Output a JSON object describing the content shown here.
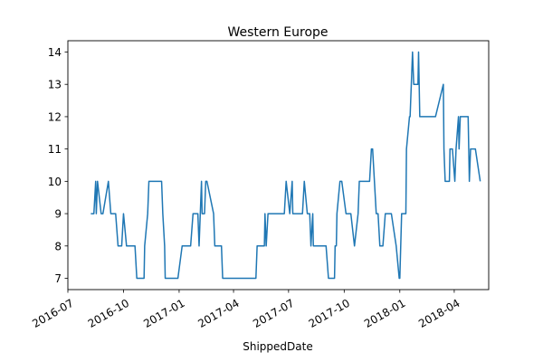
{
  "chart_data": {
    "type": "line",
    "title": "Western Europe",
    "xlabel": "ShippedDate",
    "ylabel": "",
    "xlim": [
      "2016-07-01",
      "2018-05-28"
    ],
    "ylim": [
      6.65,
      14.35
    ],
    "x_ticks": [
      "2016-07-01",
      "2016-10-01",
      "2017-01-01",
      "2017-04-01",
      "2017-07-01",
      "2017-10-01",
      "2018-01-01",
      "2018-04-01"
    ],
    "x_tick_labels": [
      "2016-07",
      "2016-10",
      "2017-01",
      "2017-04",
      "2017-07",
      "2017-10",
      "2018-01",
      "2018-04"
    ],
    "y_ticks": [
      7,
      8,
      9,
      10,
      11,
      12,
      13,
      14
    ],
    "y_tick_labels": [
      "7",
      "8",
      "9",
      "10",
      "11",
      "12",
      "13",
      "14"
    ],
    "grid": false,
    "color": "#1f77b4",
    "series": [
      {
        "name": "",
        "points": [
          [
            "2016-08-08",
            9
          ],
          [
            "2016-08-13",
            9
          ],
          [
            "2016-08-16",
            10
          ],
          [
            "2016-08-17",
            9
          ],
          [
            "2016-08-19",
            10
          ],
          [
            "2016-08-25",
            9
          ],
          [
            "2016-08-28",
            9
          ],
          [
            "2016-09-06",
            10
          ],
          [
            "2016-09-10",
            9
          ],
          [
            "2016-09-18",
            9
          ],
          [
            "2016-09-22",
            8
          ],
          [
            "2016-09-28",
            8
          ],
          [
            "2016-10-01",
            9
          ],
          [
            "2016-10-06",
            8
          ],
          [
            "2016-10-20",
            8
          ],
          [
            "2016-10-23",
            7
          ],
          [
            "2016-11-04",
            7
          ],
          [
            "2016-11-05",
            8
          ],
          [
            "2016-11-10",
            9
          ],
          [
            "2016-11-12",
            10
          ],
          [
            "2016-12-03",
            10
          ],
          [
            "2016-12-05",
            9
          ],
          [
            "2016-12-08",
            8
          ],
          [
            "2016-12-09",
            7
          ],
          [
            "2016-12-30",
            7
          ],
          [
            "2017-01-06",
            8
          ],
          [
            "2017-01-20",
            8
          ],
          [
            "2017-01-24",
            9
          ],
          [
            "2017-02-01",
            9
          ],
          [
            "2017-02-03",
            8
          ],
          [
            "2017-02-05",
            9
          ],
          [
            "2017-02-07",
            10
          ],
          [
            "2017-02-08",
            9
          ],
          [
            "2017-02-12",
            9
          ],
          [
            "2017-02-14",
            10
          ],
          [
            "2017-02-16",
            10
          ],
          [
            "2017-02-27",
            9
          ],
          [
            "2017-03-01",
            8
          ],
          [
            "2017-03-12",
            8
          ],
          [
            "2017-03-14",
            7
          ],
          [
            "2017-05-08",
            7
          ],
          [
            "2017-05-10",
            8
          ],
          [
            "2017-05-22",
            8
          ],
          [
            "2017-05-23",
            9
          ],
          [
            "2017-05-25",
            8
          ],
          [
            "2017-05-28",
            9
          ],
          [
            "2017-06-24",
            9
          ],
          [
            "2017-06-27",
            10
          ],
          [
            "2017-07-03",
            9
          ],
          [
            "2017-07-07",
            10
          ],
          [
            "2017-07-08",
            9
          ],
          [
            "2017-07-24",
            9
          ],
          [
            "2017-07-27",
            10
          ],
          [
            "2017-08-01",
            9
          ],
          [
            "2017-08-05",
            9
          ],
          [
            "2017-08-07",
            8
          ],
          [
            "2017-08-10",
            9
          ],
          [
            "2017-08-11",
            8
          ],
          [
            "2017-09-01",
            8
          ],
          [
            "2017-09-05",
            7
          ],
          [
            "2017-09-15",
            7
          ],
          [
            "2017-09-16",
            8
          ],
          [
            "2017-09-18",
            8
          ],
          [
            "2017-09-19",
            9
          ],
          [
            "2017-09-24",
            10
          ],
          [
            "2017-09-27",
            10
          ],
          [
            "2017-10-04",
            9
          ],
          [
            "2017-10-12",
            9
          ],
          [
            "2017-10-18",
            8
          ],
          [
            "2017-10-24",
            9
          ],
          [
            "2017-10-26",
            10
          ],
          [
            "2017-11-12",
            10
          ],
          [
            "2017-11-15",
            11
          ],
          [
            "2017-11-17",
            11
          ],
          [
            "2017-11-23",
            9
          ],
          [
            "2017-11-26",
            9
          ],
          [
            "2017-11-29",
            8
          ],
          [
            "2017-12-04",
            8
          ],
          [
            "2017-12-08",
            9
          ],
          [
            "2017-12-18",
            9
          ],
          [
            "2017-12-26",
            8
          ],
          [
            "2017-12-31",
            7
          ],
          [
            "2018-01-01",
            7
          ],
          [
            "2018-01-04",
            9
          ],
          [
            "2018-01-11",
            9
          ],
          [
            "2018-01-12",
            11
          ],
          [
            "2018-01-17",
            12
          ],
          [
            "2018-01-18",
            12
          ],
          [
            "2018-01-22",
            14
          ],
          [
            "2018-01-24",
            13
          ],
          [
            "2018-01-31",
            13
          ],
          [
            "2018-02-01",
            14
          ],
          [
            "2018-02-03",
            12
          ],
          [
            "2018-03-01",
            12
          ],
          [
            "2018-03-14",
            13
          ],
          [
            "2018-03-15",
            11
          ],
          [
            "2018-03-17",
            10
          ],
          [
            "2018-03-24",
            10
          ],
          [
            "2018-03-25",
            11
          ],
          [
            "2018-03-29",
            11
          ],
          [
            "2018-04-02",
            10
          ],
          [
            "2018-04-04",
            11
          ],
          [
            "2018-04-08",
            12
          ],
          [
            "2018-04-09",
            11
          ],
          [
            "2018-04-11",
            12
          ],
          [
            "2018-04-24",
            12
          ],
          [
            "2018-04-26",
            10
          ],
          [
            "2018-04-28",
            11
          ],
          [
            "2018-05-06",
            11
          ],
          [
            "2018-05-14",
            10
          ]
        ]
      }
    ]
  }
}
